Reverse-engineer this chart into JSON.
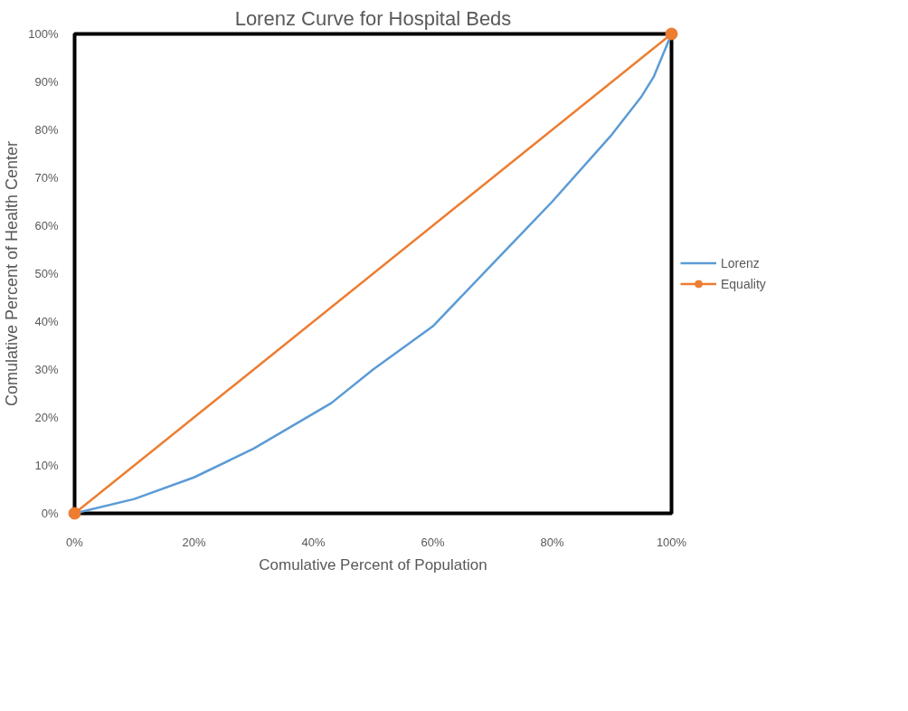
{
  "chart_data": {
    "type": "line",
    "title": "Lorenz Curve for Hospital Beds",
    "xlabel": "Comulative Percent of Population",
    "ylabel": "Comulative Percent of Health Center",
    "xlim": [
      0,
      100
    ],
    "ylim": [
      0,
      100
    ],
    "xticks": [
      {
        "value": 0,
        "label": "0%"
      },
      {
        "value": 20,
        "label": "20%"
      },
      {
        "value": 40,
        "label": "40%"
      },
      {
        "value": 60,
        "label": "60%"
      },
      {
        "value": 80,
        "label": "80%"
      },
      {
        "value": 100,
        "label": "100%"
      }
    ],
    "yticks": [
      {
        "value": 0,
        "label": "0%"
      },
      {
        "value": 10,
        "label": "10%"
      },
      {
        "value": 20,
        "label": "20%"
      },
      {
        "value": 30,
        "label": "30%"
      },
      {
        "value": 40,
        "label": "40%"
      },
      {
        "value": 50,
        "label": "50%"
      },
      {
        "value": 60,
        "label": "60%"
      },
      {
        "value": 70,
        "label": "70%"
      },
      {
        "value": 80,
        "label": "80%"
      },
      {
        "value": 90,
        "label": "90%"
      },
      {
        "value": 100,
        "label": "100%"
      }
    ],
    "grid": false,
    "legend": "right",
    "series": [
      {
        "name": "Lorenz",
        "color": "#5b9bd5",
        "marker": "none",
        "x": [
          0,
          10,
          20,
          30,
          43,
          50,
          60,
          70,
          80,
          90,
          95,
          97,
          100
        ],
        "values": [
          0,
          3,
          7.5,
          13.5,
          23,
          30,
          39,
          52,
          65,
          79,
          87,
          91,
          100
        ]
      },
      {
        "name": "Equality",
        "color": "#ed7d31",
        "marker": "circle",
        "x": [
          0,
          100
        ],
        "values": [
          0,
          100
        ]
      }
    ]
  }
}
